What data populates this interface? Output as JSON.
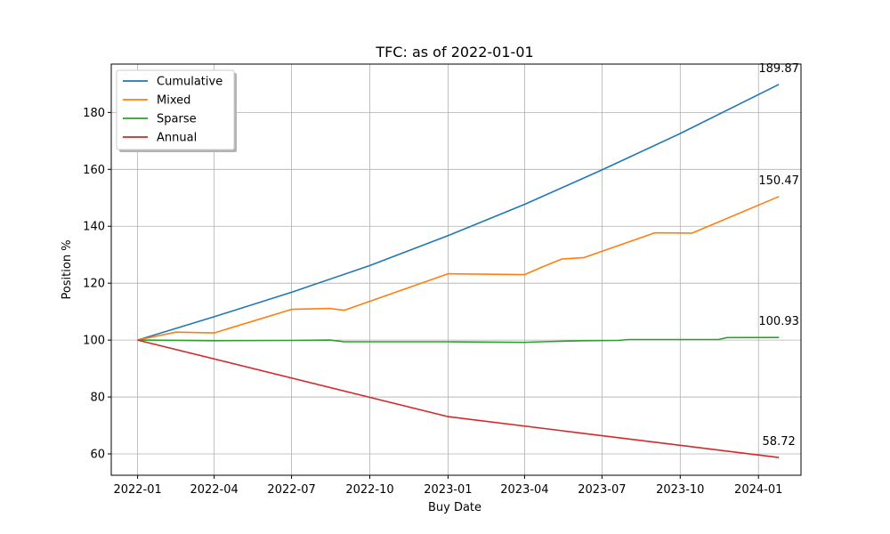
{
  "chart_data": {
    "type": "line",
    "title": "TFC: as of 2022-01-01",
    "xlabel": "Buy Date",
    "ylabel": "Position %",
    "x_ticks": [
      "2022-01",
      "2022-04",
      "2022-07",
      "2022-10",
      "2023-01",
      "2023-04",
      "2023-07",
      "2023-10",
      "2024-01"
    ],
    "y_ticks": [
      60,
      80,
      100,
      120,
      140,
      160,
      180
    ],
    "xlim": [
      "2021-12-01",
      "2024-02-20"
    ],
    "ylim": [
      52.5,
      197
    ],
    "grid": true,
    "legend_placement": "top-left",
    "series": [
      {
        "name": "Cumulative",
        "color": "#1f77b4",
        "end_label": "189.87",
        "points": [
          [
            "2022-01-01",
            100
          ],
          [
            "2022-04-01",
            108.2
          ],
          [
            "2022-07-01",
            116.8
          ],
          [
            "2022-10-01",
            126.2
          ],
          [
            "2023-01-01",
            136.7
          ],
          [
            "2023-04-01",
            147.7
          ],
          [
            "2023-07-01",
            159.8
          ],
          [
            "2023-10-01",
            172.6
          ],
          [
            "2024-01-25",
            189.87
          ]
        ]
      },
      {
        "name": "Mixed",
        "color": "#ff7f0e",
        "end_label": "150.47",
        "points": [
          [
            "2022-01-01",
            100
          ],
          [
            "2022-02-15",
            102.8
          ],
          [
            "2022-04-01",
            102.5
          ],
          [
            "2022-07-01",
            110.8
          ],
          [
            "2022-08-15",
            111.1
          ],
          [
            "2022-09-01",
            110.5
          ],
          [
            "2023-01-01",
            123.3
          ],
          [
            "2023-04-01",
            123.0
          ],
          [
            "2023-04-20",
            125.5
          ],
          [
            "2023-05-15",
            128.5
          ],
          [
            "2023-06-10",
            129.0
          ],
          [
            "2023-09-01",
            137.7
          ],
          [
            "2023-10-15",
            137.6
          ],
          [
            "2024-01-25",
            150.47
          ]
        ]
      },
      {
        "name": "Sparse",
        "color": "#2ca02c",
        "end_label": "100.93",
        "points": [
          [
            "2022-01-01",
            100
          ],
          [
            "2022-04-01",
            99.8
          ],
          [
            "2022-07-01",
            99.9
          ],
          [
            "2022-08-15",
            100.0
          ],
          [
            "2022-09-01",
            99.4
          ],
          [
            "2023-01-01",
            99.4
          ],
          [
            "2023-04-01",
            99.2
          ],
          [
            "2023-04-20",
            99.4
          ],
          [
            "2023-06-10",
            99.8
          ],
          [
            "2023-07-20",
            99.9
          ],
          [
            "2023-08-01",
            100.2
          ],
          [
            "2023-11-15",
            100.2
          ],
          [
            "2023-11-25",
            100.9
          ],
          [
            "2024-01-25",
            100.93
          ]
        ]
      },
      {
        "name": "Annual",
        "color": "#d62728",
        "end_label": "58.72",
        "points": [
          [
            "2022-01-01",
            100
          ],
          [
            "2023-01-01",
            73.1
          ],
          [
            "2024-01-25",
            58.72
          ]
        ]
      }
    ]
  }
}
